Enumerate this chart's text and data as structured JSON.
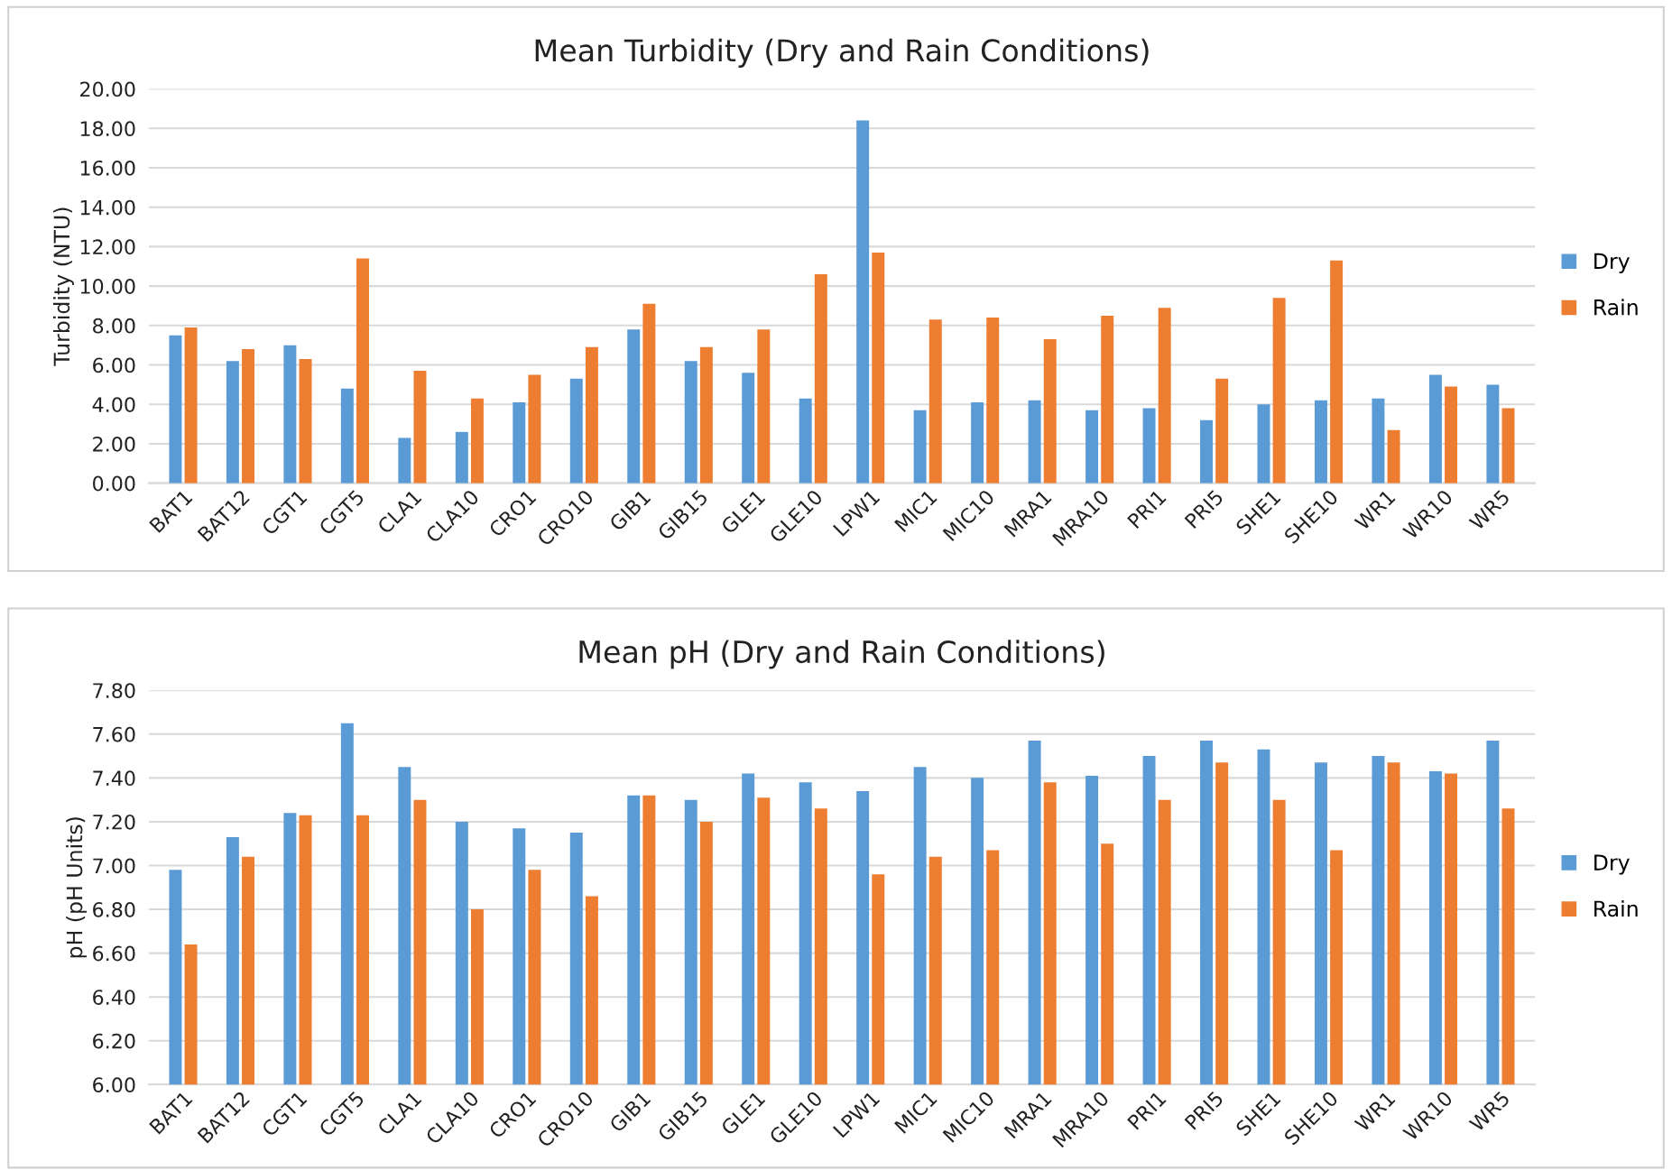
{
  "chart_data": [
    {
      "type": "bar",
      "title": "Mean Turbidity (Dry and Rain Conditions)",
      "ylabel": "Turbidity (NTU)",
      "categories": [
        "BAT1",
        "BAT12",
        "CGT1",
        "CGT5",
        "CLA1",
        "CLA10",
        "CRO1",
        "CRO10",
        "GIB1",
        "GIB15",
        "GLE1",
        "GLE10",
        "LPW1",
        "MIC1",
        "MIC10",
        "MRA1",
        "MRA10",
        "PRI1",
        "PRI5",
        "SHE1",
        "SHE10",
        "WR1",
        "WR10",
        "WR5"
      ],
      "series": [
        {
          "name": "Dry",
          "color": "#5b9bd5",
          "values": [
            7.5,
            6.2,
            7.0,
            4.8,
            2.3,
            2.6,
            4.1,
            5.3,
            7.8,
            6.2,
            5.6,
            4.3,
            18.4,
            3.7,
            4.1,
            4.2,
            3.7,
            3.8,
            3.2,
            4.0,
            4.2,
            4.3,
            5.5,
            5.0
          ]
        },
        {
          "name": "Rain",
          "color": "#ed7d31",
          "values": [
            7.9,
            6.8,
            6.3,
            11.4,
            5.7,
            4.3,
            5.5,
            6.9,
            9.1,
            6.9,
            7.8,
            10.6,
            11.7,
            8.3,
            8.4,
            7.3,
            8.5,
            8.9,
            5.3,
            9.4,
            11.3,
            2.7,
            4.9,
            3.8
          ]
        }
      ],
      "ylim": [
        0,
        20
      ],
      "yticks": [
        {
          "value": 0,
          "label": "0.00"
        },
        {
          "value": 2,
          "label": "2.00"
        },
        {
          "value": 4,
          "label": "4.00"
        },
        {
          "value": 6,
          "label": "6.00"
        },
        {
          "value": 8,
          "label": "8.00"
        },
        {
          "value": 10,
          "label": "10.00"
        },
        {
          "value": 12,
          "label": "12.00"
        },
        {
          "value": 14,
          "label": "14.00"
        },
        {
          "value": 16,
          "label": "16.00"
        },
        {
          "value": 18,
          "label": "18.00"
        },
        {
          "value": 20,
          "label": "20.00"
        }
      ],
      "grid": "y",
      "legend": "right"
    },
    {
      "type": "bar",
      "title": "Mean pH (Dry and Rain Conditions)",
      "ylabel": "pH (pH Units)",
      "categories": [
        "BAT1",
        "BAT12",
        "CGT1",
        "CGT5",
        "CLA1",
        "CLA10",
        "CRO1",
        "CRO10",
        "GIB1",
        "GIB15",
        "GLE1",
        "GLE10",
        "LPW1",
        "MIC1",
        "MIC10",
        "MRA1",
        "MRA10",
        "PRI1",
        "PRI5",
        "SHE1",
        "SHE10",
        "WR1",
        "WR10",
        "WR5"
      ],
      "series": [
        {
          "name": "Dry",
          "color": "#5b9bd5",
          "values": [
            6.98,
            7.13,
            7.24,
            7.65,
            7.45,
            7.2,
            7.17,
            7.15,
            7.32,
            7.3,
            7.42,
            7.38,
            7.34,
            7.45,
            7.4,
            7.57,
            7.41,
            7.5,
            7.57,
            7.53,
            7.47,
            7.5,
            7.43,
            7.57
          ]
        },
        {
          "name": "Rain",
          "color": "#ed7d31",
          "values": [
            6.64,
            7.04,
            7.23,
            7.23,
            7.3,
            6.8,
            6.98,
            6.86,
            7.32,
            7.2,
            7.31,
            7.26,
            6.96,
            7.04,
            7.07,
            7.38,
            7.1,
            7.3,
            7.47,
            7.3,
            7.07,
            7.47,
            7.42,
            7.26
          ]
        }
      ],
      "ylim": [
        6,
        7.8
      ],
      "yticks": [
        {
          "value": 6,
          "label": "6.00"
        },
        {
          "value": 6.2,
          "label": "6.20"
        },
        {
          "value": 6.4,
          "label": "6.40"
        },
        {
          "value": 6.6,
          "label": "6.60"
        },
        {
          "value": 6.8,
          "label": "6.80"
        },
        {
          "value": 7,
          "label": "7.00"
        },
        {
          "value": 7.2,
          "label": "7.20"
        },
        {
          "value": 7.4,
          "label": "7.40"
        },
        {
          "value": 7.6,
          "label": "7.60"
        },
        {
          "value": 7.8,
          "label": "7.80"
        }
      ],
      "grid": "y",
      "legend": "right"
    }
  ]
}
